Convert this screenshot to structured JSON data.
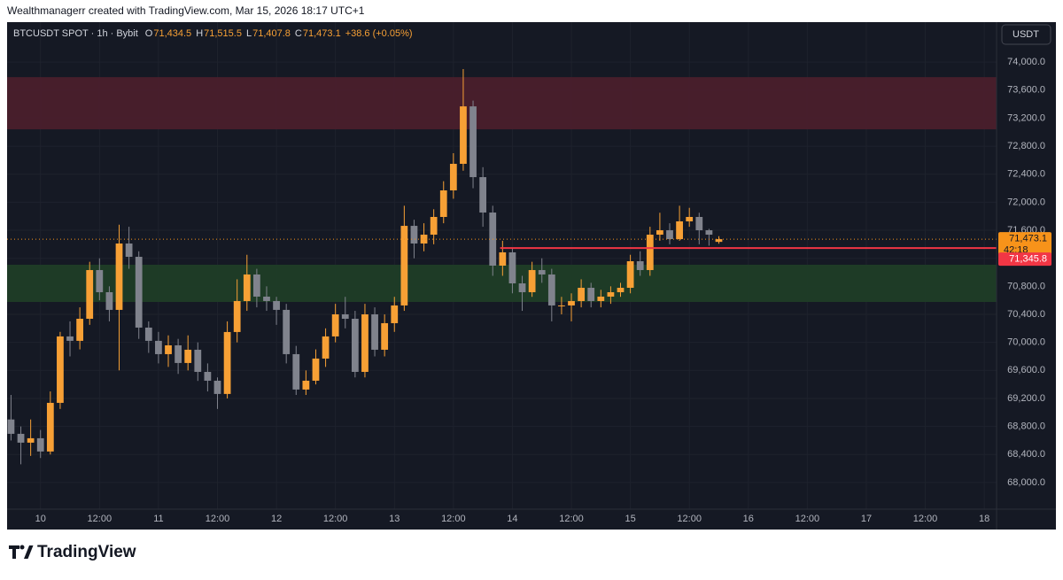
{
  "header": {
    "text": "Wealthmanagerr created with TradingView.com, Mar 15, 2026 18:17 UTC+1"
  },
  "legend": {
    "symbol": "BTCUSDT SPOT · 1h · Bybit",
    "items": [
      {
        "key": "O",
        "value": "71,434.5"
      },
      {
        "key": "H",
        "value": "71,515.5"
      },
      {
        "key": "L",
        "value": "71,407.8"
      },
      {
        "key": "C",
        "value": "71,473.1"
      }
    ],
    "change": "+38.6 (+0.05%)"
  },
  "currency_button": "USDT",
  "footer": {
    "logo": "TradingView"
  },
  "chart_data": {
    "type": "candlestick",
    "up_color": "#f7a035",
    "down_color": "#80838d",
    "xlim": [
      -6.8,
      194.5
    ],
    "xticks": [
      {
        "value": 0,
        "label": "10"
      },
      {
        "value": 12,
        "label": "12:00"
      },
      {
        "value": 24,
        "label": "11"
      },
      {
        "value": 36,
        "label": "12:00"
      },
      {
        "value": 48,
        "label": "12"
      },
      {
        "value": 60,
        "label": "12:00"
      },
      {
        "value": 72,
        "label": "13"
      },
      {
        "value": 84,
        "label": "12:00"
      },
      {
        "value": 96,
        "label": "14"
      },
      {
        "value": 108,
        "label": "12:00"
      },
      {
        "value": 120,
        "label": "15"
      },
      {
        "value": 132,
        "label": "12:00"
      },
      {
        "value": 144,
        "label": "16"
      },
      {
        "value": 156,
        "label": "12:00"
      },
      {
        "value": 168,
        "label": "17"
      },
      {
        "value": 180,
        "label": "12:00"
      },
      {
        "value": 192,
        "label": "18"
      }
    ],
    "ylim": [
      67620,
      74570
    ],
    "yticks": [
      {
        "value": 68000,
        "label": "68,000.0"
      },
      {
        "value": 68400,
        "label": "68,400.0"
      },
      {
        "value": 68800,
        "label": "68,800.0"
      },
      {
        "value": 69200,
        "label": "69,200.0"
      },
      {
        "value": 69600,
        "label": "69,600.0"
      },
      {
        "value": 70000,
        "label": "70,000.0"
      },
      {
        "value": 70400,
        "label": "70,400.0"
      },
      {
        "value": 70800,
        "label": "70,800.0"
      },
      {
        "value": 71200,
        "label": "71,200.0"
      },
      {
        "value": 71600,
        "label": "71,600.0"
      },
      {
        "value": 72000,
        "label": "72,000.0"
      },
      {
        "value": 72400,
        "label": "72,400.0"
      },
      {
        "value": 72800,
        "label": "72,800.0"
      },
      {
        "value": 73200,
        "label": "73,200.0"
      },
      {
        "value": 73600,
        "label": "73,600.0"
      },
      {
        "value": 74000,
        "label": "74,000.0"
      }
    ],
    "zones": [
      {
        "from": 73040,
        "to": 73785,
        "color": "#4a1f2c"
      },
      {
        "from": 70577,
        "to": 71108,
        "color": "#1f3d27"
      }
    ],
    "price_lines": [
      {
        "value": 71473.1,
        "label": "71,473.1",
        "countdown": "42:18",
        "color": "#f7931a",
        "style": "dotted"
      },
      {
        "value": 71345.8,
        "label": "71,345.8",
        "color": "#f23645",
        "style": "solid",
        "from_x": 93.5
      }
    ],
    "series": [
      {
        "x": [
          -6,
          -4,
          -2,
          0,
          2,
          4,
          6,
          8,
          10,
          12,
          14,
          16,
          18,
          20,
          22,
          24,
          26,
          28,
          30,
          32,
          34,
          36,
          38,
          40,
          42,
          44,
          46,
          48,
          50,
          52,
          54,
          56,
          58,
          60,
          62,
          64,
          66,
          68,
          70,
          72,
          74,
          76,
          78,
          80,
          82,
          84,
          86,
          88,
          90,
          92,
          94,
          96,
          98,
          100,
          102,
          104,
          106,
          108,
          110,
          112,
          114,
          116,
          118,
          120,
          122,
          124,
          126,
          128,
          130,
          132,
          134,
          136,
          138
        ],
        "open": [
          68900,
          68695,
          68569,
          68632,
          68443,
          69137,
          70085,
          70022,
          70337,
          71032,
          70716,
          70464,
          71411,
          71221,
          70211,
          70022,
          69832,
          69958,
          69706,
          69895,
          69579,
          69453,
          69264,
          70148,
          70590,
          70969,
          70653,
          70590,
          70464,
          69832,
          69327,
          69453,
          69769,
          70085,
          70400,
          70337,
          69579,
          70400,
          69895,
          70274,
          70527,
          71663,
          71411,
          71537,
          71790,
          72169,
          72548,
          73368,
          72358,
          71853,
          71095,
          71285,
          70842,
          70716,
          71032,
          70969,
          70527,
          70527,
          70590,
          70779,
          70590,
          70653,
          70716,
          70779,
          71158,
          71032,
          71537,
          71600,
          71474,
          71727,
          71790,
          71600,
          71434.5
        ],
        "high": [
          69250,
          68800,
          68900,
          68750,
          69300,
          70150,
          70300,
          70500,
          71150,
          71200,
          70800,
          71680,
          71650,
          71300,
          70300,
          70150,
          70100,
          70050,
          70100,
          70000,
          69700,
          69500,
          70300,
          70900,
          71250,
          71050,
          70800,
          70650,
          70550,
          69950,
          69600,
          69900,
          70200,
          70550,
          70650,
          70450,
          70550,
          70500,
          70400,
          70650,
          71950,
          71750,
          71700,
          71900,
          72300,
          72700,
          73900,
          73450,
          72500,
          71950,
          71450,
          71350,
          70950,
          71150,
          71200,
          71050,
          70650,
          70700,
          70900,
          70850,
          70750,
          70800,
          70850,
          71250,
          71300,
          71650,
          71850,
          71700,
          71950,
          71920,
          71850,
          71620,
          71515.5
        ],
        "low": [
          68600,
          68260,
          68380,
          68350,
          68400,
          69050,
          69800,
          69900,
          70250,
          70600,
          70300,
          69600,
          71050,
          70050,
          69850,
          69700,
          69650,
          69550,
          69600,
          69450,
          69300,
          69050,
          69200,
          70000,
          70450,
          70500,
          70450,
          70250,
          69700,
          69250,
          69250,
          69400,
          69650,
          70000,
          70200,
          69500,
          69500,
          69800,
          69800,
          70150,
          70450,
          71200,
          71300,
          71400,
          71700,
          72050,
          72450,
          72200,
          71650,
          70950,
          70950,
          70700,
          70450,
          70650,
          70850,
          70300,
          70400,
          70300,
          70500,
          70500,
          70500,
          70550,
          70650,
          70700,
          70950,
          70950,
          71450,
          71400,
          71450,
          71650,
          71400,
          71380,
          71407.8
        ],
        "close": [
          68695,
          68569,
          68632,
          68443,
          69137,
          70085,
          70022,
          70337,
          71032,
          70716,
          70464,
          71411,
          71221,
          70211,
          70022,
          69832,
          69958,
          69706,
          69895,
          69579,
          69453,
          69264,
          70148,
          70590,
          70969,
          70653,
          70590,
          70464,
          69832,
          69327,
          69453,
          69769,
          70085,
          70400,
          70337,
          69579,
          70400,
          69895,
          70274,
          70527,
          71663,
          71411,
          71537,
          71790,
          72169,
          72548,
          73368,
          72358,
          71853,
          71095,
          71285,
          70842,
          70716,
          71032,
          70969,
          70527,
          70527,
          70590,
          70779,
          70590,
          70653,
          70716,
          70779,
          71158,
          71032,
          71537,
          71600,
          71474,
          71727,
          71790,
          71600,
          71537,
          71473.1
        ]
      }
    ]
  }
}
